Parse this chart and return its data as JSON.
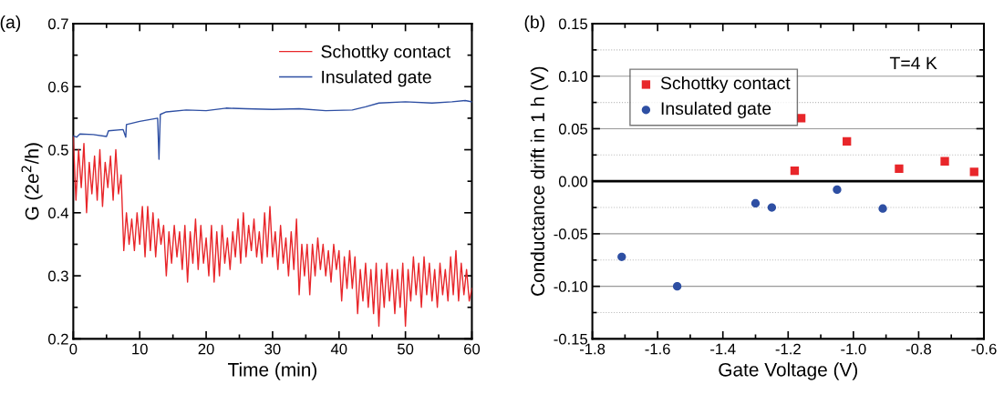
{
  "chart_data": [
    {
      "type": "line",
      "xlabel": "Time (min)",
      "ylabel": "G (2e$^{2}$/h)",
      "annotations": [
        "(a)"
      ],
      "xlim": [
        0,
        60
      ],
      "ylim": [
        0.2,
        0.7
      ],
      "xticks": [
        0,
        {
          "value": 5,
          "label": null
        },
        10,
        {
          "value": 15,
          "label": null
        },
        20,
        {
          "value": 25,
          "label": null
        },
        30,
        {
          "value": 35,
          "label": null
        },
        40,
        {
          "value": 45,
          "label": null
        },
        50,
        {
          "value": 55,
          "label": null
        },
        60
      ],
      "yticks": [
        0.2,
        {
          "value": 0.25,
          "label": null
        },
        0.3,
        {
          "value": 0.35,
          "label": null
        },
        0.4,
        {
          "value": 0.45,
          "label": null
        },
        0.5,
        {
          "value": 0.55,
          "label": null
        },
        0.6,
        {
          "value": 0.65,
          "label": null
        },
        0.7
      ],
      "legend": "top right",
      "grid": false,
      "marker": "none",
      "line_style": "solid",
      "series": [
        {
          "name": "Schottky contact",
          "color": "#e8262a",
          "x": [
            0,
            0.4,
            0.8,
            1.2,
            1.6,
            2,
            2.4,
            2.8,
            3.2,
            3.6,
            4,
            4.4,
            4.8,
            5.2,
            5.6,
            6,
            6.4,
            6.8,
            7.2,
            7.6,
            8,
            8.4,
            8.8,
            9.2,
            9.6,
            10,
            10.4,
            10.8,
            11.2,
            11.6,
            12,
            12.4,
            12.8,
            13.2,
            13.6,
            14,
            14.4,
            14.8,
            15.2,
            15.6,
            16,
            16.4,
            16.8,
            17.2,
            17.6,
            18,
            18.4,
            18.8,
            19.2,
            19.6,
            20,
            20.4,
            20.8,
            21.2,
            21.6,
            22,
            22.4,
            22.8,
            23.2,
            23.6,
            24,
            24.4,
            24.8,
            25.2,
            25.6,
            26,
            26.4,
            26.8,
            27.2,
            27.6,
            28,
            28.4,
            28.8,
            29.2,
            29.6,
            30,
            30.4,
            30.8,
            31.2,
            31.6,
            32,
            32.4,
            32.8,
            33.2,
            33.6,
            34,
            34.4,
            34.8,
            35.2,
            35.6,
            36,
            36.4,
            36.8,
            37.2,
            37.6,
            38,
            38.4,
            38.8,
            39.2,
            39.6,
            40,
            40.4,
            40.8,
            41.2,
            41.6,
            42,
            42.4,
            42.8,
            43.2,
            43.6,
            44,
            44.4,
            44.8,
            45.2,
            45.6,
            46,
            46.4,
            46.8,
            47.2,
            47.6,
            48,
            48.4,
            48.8,
            49.2,
            49.6,
            50,
            50.4,
            50.8,
            51.2,
            51.6,
            52,
            52.4,
            52.8,
            53.2,
            53.6,
            54,
            54.4,
            54.8,
            55.2,
            55.6,
            56,
            56.4,
            56.8,
            57.2,
            57.6,
            58,
            58.4,
            58.8,
            59.2,
            59.6,
            60
          ],
          "values": [
            0.52,
            0.42,
            0.5,
            0.44,
            0.51,
            0.4,
            0.48,
            0.43,
            0.49,
            0.42,
            0.5,
            0.41,
            0.48,
            0.44,
            0.49,
            0.42,
            0.5,
            0.43,
            0.46,
            0.34,
            0.4,
            0.35,
            0.39,
            0.34,
            0.4,
            0.35,
            0.41,
            0.33,
            0.41,
            0.34,
            0.4,
            0.33,
            0.39,
            0.35,
            0.38,
            0.3,
            0.37,
            0.32,
            0.38,
            0.33,
            0.37,
            0.31,
            0.38,
            0.29,
            0.37,
            0.32,
            0.39,
            0.31,
            0.38,
            0.32,
            0.36,
            0.3,
            0.38,
            0.29,
            0.37,
            0.3,
            0.38,
            0.32,
            0.36,
            0.31,
            0.37,
            0.33,
            0.39,
            0.32,
            0.4,
            0.33,
            0.38,
            0.34,
            0.39,
            0.33,
            0.37,
            0.32,
            0.4,
            0.33,
            0.41,
            0.33,
            0.37,
            0.31,
            0.38,
            0.32,
            0.36,
            0.3,
            0.37,
            0.31,
            0.39,
            0.27,
            0.35,
            0.3,
            0.35,
            0.27,
            0.35,
            0.3,
            0.36,
            0.31,
            0.35,
            0.3,
            0.34,
            0.29,
            0.35,
            0.31,
            0.34,
            0.26,
            0.33,
            0.28,
            0.34,
            0.28,
            0.33,
            0.24,
            0.31,
            0.26,
            0.32,
            0.25,
            0.31,
            0.24,
            0.32,
            0.22,
            0.31,
            0.25,
            0.32,
            0.26,
            0.31,
            0.24,
            0.31,
            0.25,
            0.32,
            0.22,
            0.31,
            0.26,
            0.33,
            0.27,
            0.32,
            0.25,
            0.33,
            0.27,
            0.32,
            0.26,
            0.31,
            0.25,
            0.32,
            0.27,
            0.31,
            0.26,
            0.33,
            0.27,
            0.34,
            0.26,
            0.32,
            0.27,
            0.31,
            0.26,
            0.28
          ]
        },
        {
          "name": "Insulated gate",
          "color": "#2e4fa3",
          "x": [
            0,
            0.5,
            1,
            3,
            5,
            5.3,
            7.5,
            7.9,
            8.0,
            10,
            12.7,
            12.9,
            13.1,
            14,
            17,
            20,
            23,
            26,
            30,
            34,
            38,
            42,
            44,
            46,
            50,
            54,
            57,
            59,
            60
          ],
          "values": [
            0.522,
            0.52,
            0.525,
            0.524,
            0.521,
            0.53,
            0.532,
            0.52,
            0.54,
            0.545,
            0.55,
            0.485,
            0.556,
            0.56,
            0.563,
            0.562,
            0.566,
            0.565,
            0.564,
            0.565,
            0.562,
            0.563,
            0.568,
            0.574,
            0.576,
            0.574,
            0.576,
            0.578,
            0.576
          ]
        }
      ]
    },
    {
      "type": "scatter",
      "xlabel": "Gate Voltage (V)",
      "ylabel": "Conductance drift in 1 h (V)",
      "annotations": [
        "(b)",
        "T=4 K"
      ],
      "xlim": [
        -1.8,
        -0.6
      ],
      "ylim": [
        -0.15,
        0.15
      ],
      "xticks": [
        -1.8,
        {
          "value": -1.7,
          "label": null
        },
        -1.6,
        {
          "value": -1.5,
          "label": null
        },
        -1.4,
        {
          "value": -1.3,
          "label": null
        },
        -1.2,
        {
          "value": -1.1,
          "label": null
        },
        {
          "value": -1.0,
          "label": "-1.0"
        },
        {
          "value": -0.9,
          "label": null
        },
        -0.8,
        {
          "value": -0.7,
          "label": null
        },
        -0.6
      ],
      "yticks": [
        {
          "value": -0.15,
          "label": "-0.15"
        },
        {
          "value": -0.125,
          "label": null
        },
        {
          "value": -0.1,
          "label": "-0.10"
        },
        {
          "value": -0.075,
          "label": null
        },
        {
          "value": -0.05,
          "label": "-0.05"
        },
        {
          "value": -0.025,
          "label": null
        },
        {
          "value": 0,
          "label": "0.00"
        },
        {
          "value": 0.025,
          "label": null
        },
        {
          "value": 0.05,
          "label": "0.05"
        },
        {
          "value": 0.075,
          "label": null
        },
        {
          "value": 0.1,
          "label": "0.10"
        },
        {
          "value": 0.125,
          "label": null
        },
        {
          "value": 0.15,
          "label": "0.15"
        }
      ],
      "grid": "y",
      "legend": "top left",
      "ref_lines": [
        {
          "axis": "y",
          "value": 0,
          "color": "#000000",
          "line_style": "solid"
        }
      ],
      "series": [
        {
          "name": "Schottky contact",
          "color": "#e8262a",
          "marker": "square",
          "x": [
            -1.18,
            -1.16,
            -1.02,
            -0.86,
            -0.72,
            -0.63
          ],
          "values": [
            0.01,
            0.06,
            0.038,
            0.012,
            0.019,
            0.009
          ]
        },
        {
          "name": "Insulated gate",
          "color": "#2e4fa3",
          "marker": "circle",
          "x": [
            -1.71,
            -1.54,
            -1.3,
            -1.25,
            -1.05,
            -0.91
          ],
          "values": [
            -0.072,
            -0.1,
            -0.021,
            -0.025,
            -0.008,
            -0.026
          ]
        }
      ]
    }
  ]
}
